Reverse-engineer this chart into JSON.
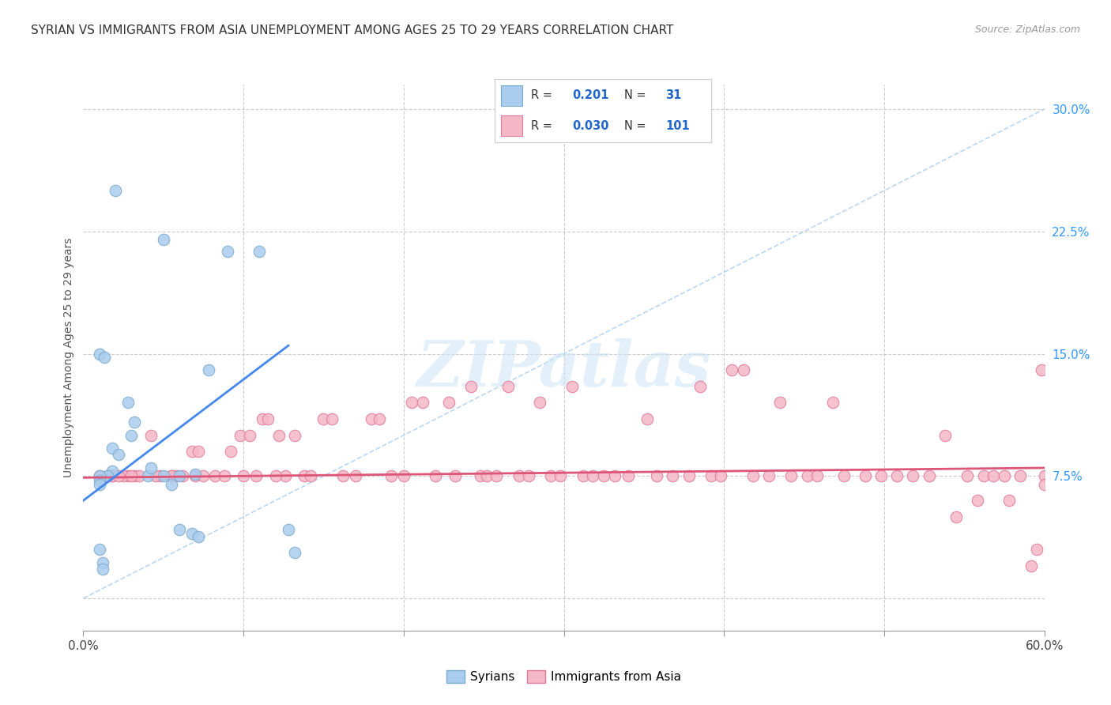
{
  "title": "SYRIAN VS IMMIGRANTS FROM ASIA UNEMPLOYMENT AMONG AGES 25 TO 29 YEARS CORRELATION CHART",
  "source": "Source: ZipAtlas.com",
  "ylabel": "Unemployment Among Ages 25 to 29 years",
  "xlim": [
    0.0,
    0.6
  ],
  "ylim": [
    -0.02,
    0.315
  ],
  "yticks": [
    0.0,
    0.075,
    0.15,
    0.225,
    0.3
  ],
  "ytick_labels_right": [
    "",
    "7.5%",
    "15.0%",
    "22.5%",
    "30.0%"
  ],
  "watermark_text": "ZIPatlas",
  "background_color": "#ffffff",
  "grid_color": "#cccccc",
  "title_fontsize": 11,
  "legend_R_color": "#2266cc",
  "diag_color": "#aaccee",
  "series": [
    {
      "name": "Syrians",
      "R": 0.201,
      "N": 31,
      "marker_face": "#aaccee",
      "marker_edge": "#7aaaca",
      "trend_color": "#4488ee",
      "scatter_x": [
        0.02,
        0.05,
        0.09,
        0.11,
        0.01,
        0.013,
        0.028,
        0.032,
        0.03,
        0.018,
        0.022,
        0.018,
        0.015,
        0.01,
        0.01,
        0.01,
        0.04,
        0.042,
        0.05,
        0.055,
        0.06,
        0.068,
        0.072,
        0.078,
        0.01,
        0.012,
        0.012,
        0.128,
        0.132,
        0.06,
        0.07
      ],
      "scatter_y": [
        0.25,
        0.22,
        0.213,
        0.213,
        0.15,
        0.148,
        0.12,
        0.108,
        0.1,
        0.092,
        0.088,
        0.078,
        0.075,
        0.075,
        0.072,
        0.07,
        0.075,
        0.08,
        0.075,
        0.07,
        0.042,
        0.04,
        0.038,
        0.14,
        0.03,
        0.022,
        0.018,
        0.042,
        0.028,
        0.075,
        0.076
      ],
      "trend_x": [
        0.0,
        0.128
      ],
      "trend_y": [
        0.06,
        0.155
      ]
    },
    {
      "name": "Immigrants from Asia",
      "R": 0.03,
      "N": 101,
      "marker_face": "#f5b8c8",
      "marker_edge": "#e07898",
      "trend_color": "#dd5577",
      "scatter_x": [
        0.01,
        0.018,
        0.028,
        0.032,
        0.042,
        0.048,
        0.055,
        0.058,
        0.062,
        0.068,
        0.07,
        0.075,
        0.072,
        0.082,
        0.088,
        0.092,
        0.098,
        0.1,
        0.104,
        0.108,
        0.112,
        0.115,
        0.122,
        0.126,
        0.12,
        0.132,
        0.138,
        0.142,
        0.15,
        0.155,
        0.162,
        0.17,
        0.18,
        0.185,
        0.192,
        0.2,
        0.205,
        0.212,
        0.22,
        0.228,
        0.232,
        0.242,
        0.248,
        0.252,
        0.258,
        0.265,
        0.272,
        0.278,
        0.285,
        0.292,
        0.298,
        0.305,
        0.312,
        0.318,
        0.325,
        0.332,
        0.34,
        0.352,
        0.358,
        0.368,
        0.378,
        0.385,
        0.392,
        0.398,
        0.405,
        0.412,
        0.418,
        0.428,
        0.435,
        0.442,
        0.452,
        0.458,
        0.468,
        0.475,
        0.488,
        0.498,
        0.508,
        0.518,
        0.528,
        0.538,
        0.545,
        0.552,
        0.558,
        0.562,
        0.568,
        0.575,
        0.578,
        0.585,
        0.592,
        0.595,
        0.598,
        0.6,
        0.6,
        0.015,
        0.025,
        0.035,
        0.045,
        0.055,
        0.018,
        0.022,
        0.03
      ],
      "scatter_y": [
        0.075,
        0.075,
        0.075,
        0.075,
        0.1,
        0.075,
        0.075,
        0.075,
        0.075,
        0.09,
        0.075,
        0.075,
        0.09,
        0.075,
        0.075,
        0.09,
        0.1,
        0.075,
        0.1,
        0.075,
        0.11,
        0.11,
        0.1,
        0.075,
        0.075,
        0.1,
        0.075,
        0.075,
        0.11,
        0.11,
        0.075,
        0.075,
        0.11,
        0.11,
        0.075,
        0.075,
        0.12,
        0.12,
        0.075,
        0.12,
        0.075,
        0.13,
        0.075,
        0.075,
        0.075,
        0.13,
        0.075,
        0.075,
        0.12,
        0.075,
        0.075,
        0.13,
        0.075,
        0.075,
        0.075,
        0.075,
        0.075,
        0.11,
        0.075,
        0.075,
        0.075,
        0.13,
        0.075,
        0.075,
        0.14,
        0.14,
        0.075,
        0.075,
        0.12,
        0.075,
        0.075,
        0.075,
        0.12,
        0.075,
        0.075,
        0.075,
        0.075,
        0.075,
        0.075,
        0.1,
        0.05,
        0.075,
        0.06,
        0.075,
        0.075,
        0.075,
        0.06,
        0.075,
        0.02,
        0.03,
        0.14,
        0.075,
        0.07,
        0.075,
        0.075,
        0.075,
        0.075,
        0.075,
        0.075,
        0.075,
        0.075
      ],
      "trend_x": [
        0.0,
        0.6
      ],
      "trend_y": [
        0.074,
        0.08
      ]
    }
  ]
}
